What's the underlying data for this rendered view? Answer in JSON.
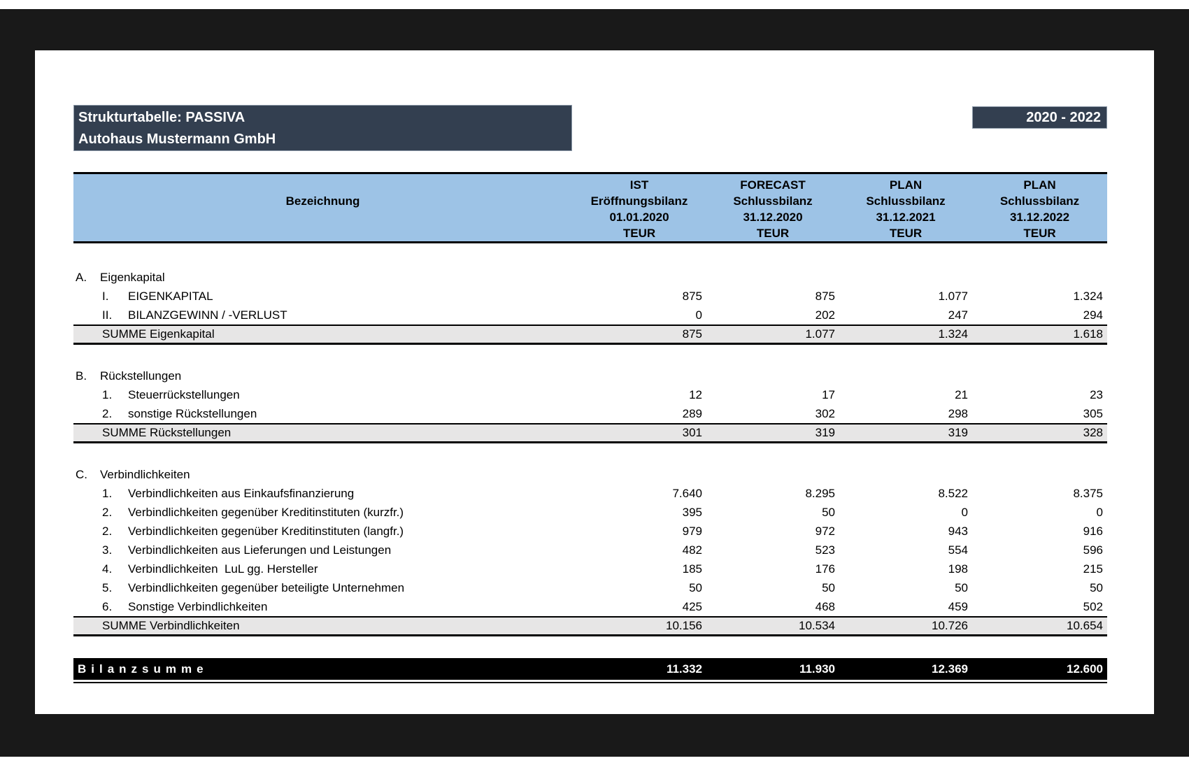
{
  "title_block": {
    "line1": "Strukturtabelle: PASSIVA",
    "line2": "Autohaus Mustermann GmbH"
  },
  "period_badge": "2020 - 2022",
  "colors": {
    "header_bar": "#333F50",
    "table_header": "#9DC3E6",
    "summary_row": "#E7E6E6",
    "total_row": "#000000",
    "frame": "#191919"
  },
  "table": {
    "name_header": "Bezeichnung",
    "columns": [
      {
        "scenario": "IST",
        "type": "Eröffnungsbilanz",
        "date": "01.01.2020",
        "unit": "TEUR"
      },
      {
        "scenario": "FORECAST",
        "type": "Schlussbilanz",
        "date": "31.12.2020",
        "unit": "TEUR"
      },
      {
        "scenario": "PLAN",
        "type": "Schlussbilanz",
        "date": "31.12.2021",
        "unit": "TEUR"
      },
      {
        "scenario": "PLAN",
        "type": "Schlussbilanz",
        "date": "31.12.2022",
        "unit": "TEUR"
      }
    ],
    "sections": [
      {
        "letter": "A.",
        "title": "Eigenkapital",
        "rows": [
          {
            "num": "I.",
            "label": "EIGENKAPITAL",
            "values": [
              "875",
              "875",
              "1.077",
              "1.324"
            ]
          },
          {
            "num": "II.",
            "label": "BILANZGEWINN / -VERLUST",
            "values": [
              "0",
              "202",
              "247",
              "294"
            ]
          }
        ],
        "summary": {
          "label": "SUMME Eigenkapital",
          "values": [
            "875",
            "1.077",
            "1.324",
            "1.618"
          ]
        }
      },
      {
        "letter": "B.",
        "title": "Rückstellungen",
        "rows": [
          {
            "num": "1.",
            "label": "Steuerrückstellungen",
            "values": [
              "12",
              "17",
              "21",
              "23"
            ]
          },
          {
            "num": "2.",
            "label": "sonstige Rückstellungen",
            "values": [
              "289",
              "302",
              "298",
              "305"
            ]
          }
        ],
        "summary": {
          "label": "SUMME Rückstellungen",
          "values": [
            "301",
            "319",
            "319",
            "328"
          ]
        }
      },
      {
        "letter": "C.",
        "title": "Verbindlichkeiten",
        "rows": [
          {
            "num": "1.",
            "label": "Verbindlichkeiten aus Einkaufsfinanzierung",
            "values": [
              "7.640",
              "8.295",
              "8.522",
              "8.375"
            ]
          },
          {
            "num": "2.",
            "label": "Verbindlichkeiten gegenüber Kreditinstituten (kurzfr.)",
            "values": [
              "395",
              "50",
              "0",
              "0"
            ]
          },
          {
            "num": "2.",
            "label": "Verbindlichkeiten gegenüber Kreditinstituten (langfr.)",
            "values": [
              "979",
              "972",
              "943",
              "916"
            ]
          },
          {
            "num": "3.",
            "label": "Verbindlichkeiten aus Lieferungen und Leistungen",
            "values": [
              "482",
              "523",
              "554",
              "596"
            ]
          },
          {
            "num": "4.",
            "label": "Verbindlichkeiten  LuL gg. Hersteller",
            "values": [
              "185",
              "176",
              "198",
              "215"
            ]
          },
          {
            "num": "5.",
            "label": "Verbindlichkeiten gegenüber beteiligte Unternehmen",
            "values": [
              "50",
              "50",
              "50",
              "50"
            ]
          },
          {
            "num": "6.",
            "label": "Sonstige Verbindlichkeiten",
            "values": [
              "425",
              "468",
              "459",
              "502"
            ]
          }
        ],
        "summary": {
          "label": "SUMME Verbindlichkeiten",
          "values": [
            "10.156",
            "10.534",
            "10.726",
            "10.654"
          ]
        }
      }
    ],
    "total": {
      "label": "Bilanzsumme",
      "values": [
        "11.332",
        "11.930",
        "12.369",
        "12.600"
      ]
    }
  }
}
